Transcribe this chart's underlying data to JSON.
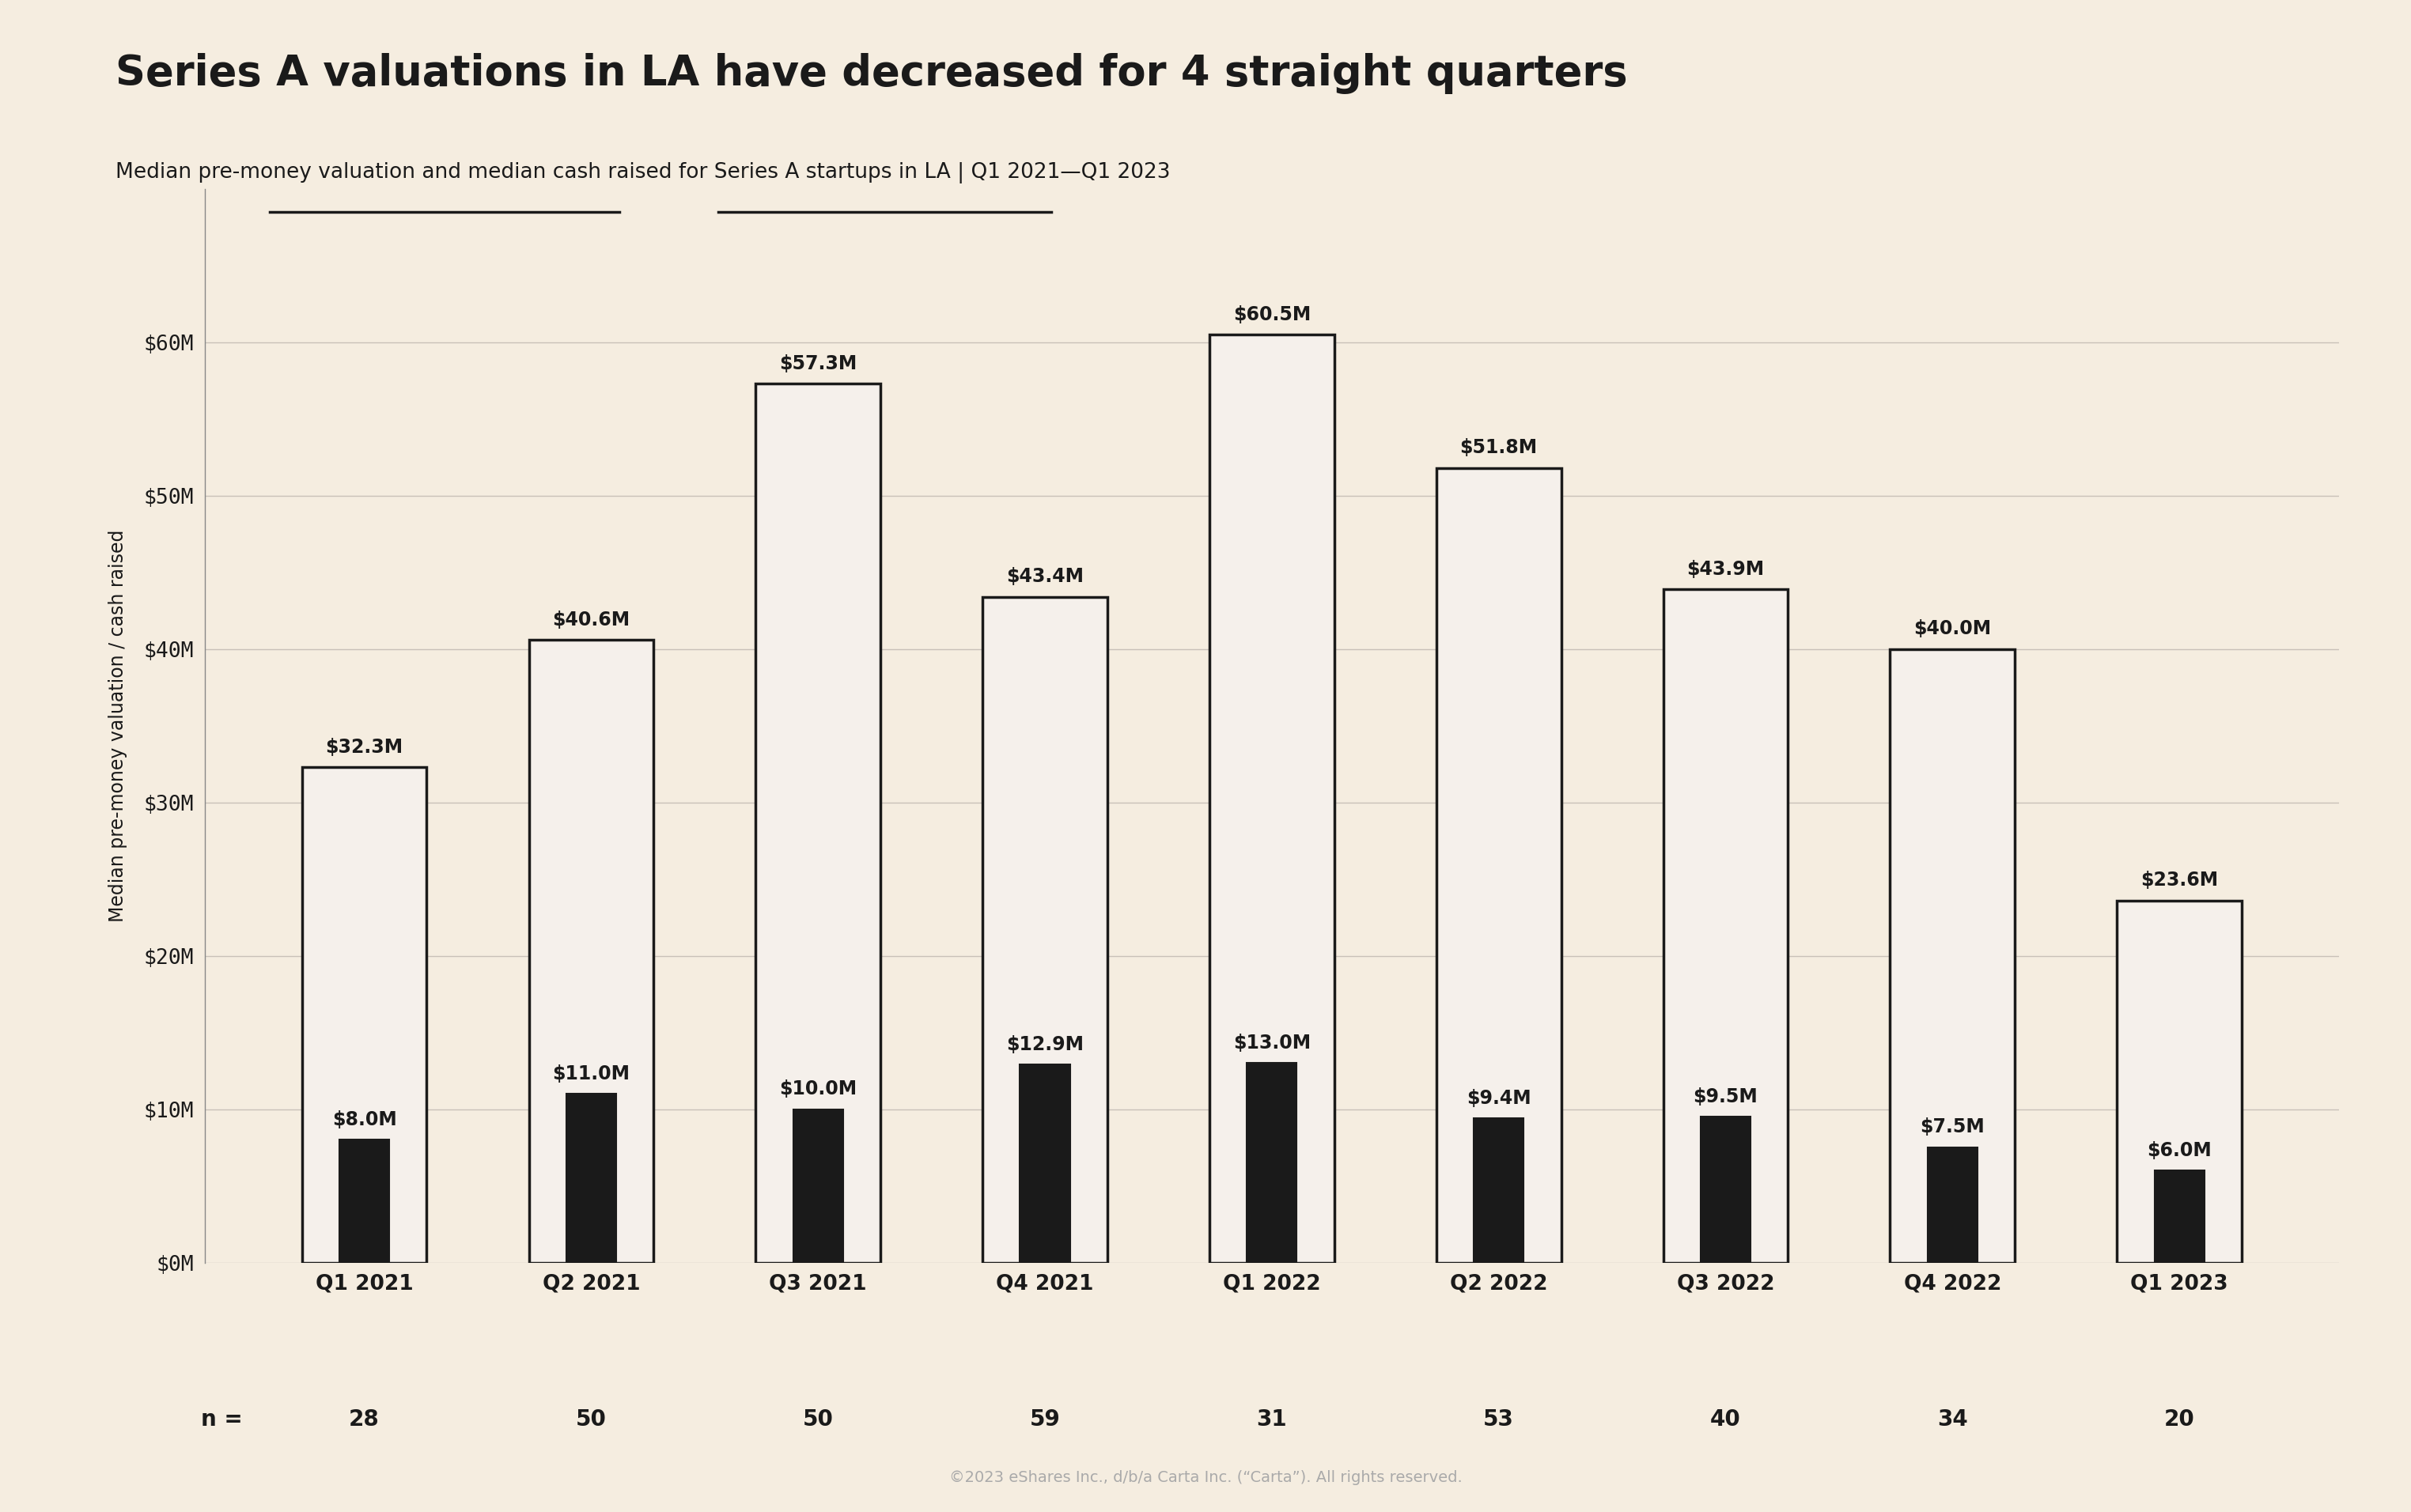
{
  "title": "Series A valuations in LA have decreased for 4 straight quarters",
  "subtitle": "Median pre-money valuation and median cash raised for Series A startups in LA | Q1 2021—Q1 2023",
  "categories": [
    "Q1 2021",
    "Q2 2021",
    "Q3 2021",
    "Q4 2021",
    "Q1 2022",
    "Q2 2022",
    "Q3 2022",
    "Q4 2022",
    "Q1 2023"
  ],
  "valuation": [
    32.3,
    40.6,
    57.3,
    43.4,
    60.5,
    51.8,
    43.9,
    40.0,
    23.6
  ],
  "cash": [
    8.0,
    11.0,
    10.0,
    12.9,
    13.0,
    9.4,
    9.5,
    7.5,
    6.0
  ],
  "n_values": [
    28,
    50,
    50,
    59,
    31,
    53,
    40,
    34,
    20
  ],
  "valuation_color": "#f5f0eb",
  "valuation_edge_color": "#1a1a1a",
  "cash_color": "#1a1a1a",
  "background_color": "#f5ede0",
  "ylabel": "Median pre-money valuation / cash raised",
  "ylim": [
    0,
    70
  ],
  "yticks": [
    0,
    10,
    20,
    30,
    40,
    50,
    60
  ],
  "ytick_labels": [
    "$0M",
    "$10M",
    "$20M",
    "$30M",
    "$40M",
    "$50M",
    "$60M"
  ],
  "title_fontsize": 38,
  "subtitle_fontsize": 19,
  "tick_fontsize": 19,
  "annotation_fontsize": 17,
  "n_fontsize": 20,
  "ylabel_fontsize": 17,
  "copyright": "©2023 eShares Inc., d/b/a Carta Inc. (“Carta”). All rights reserved."
}
